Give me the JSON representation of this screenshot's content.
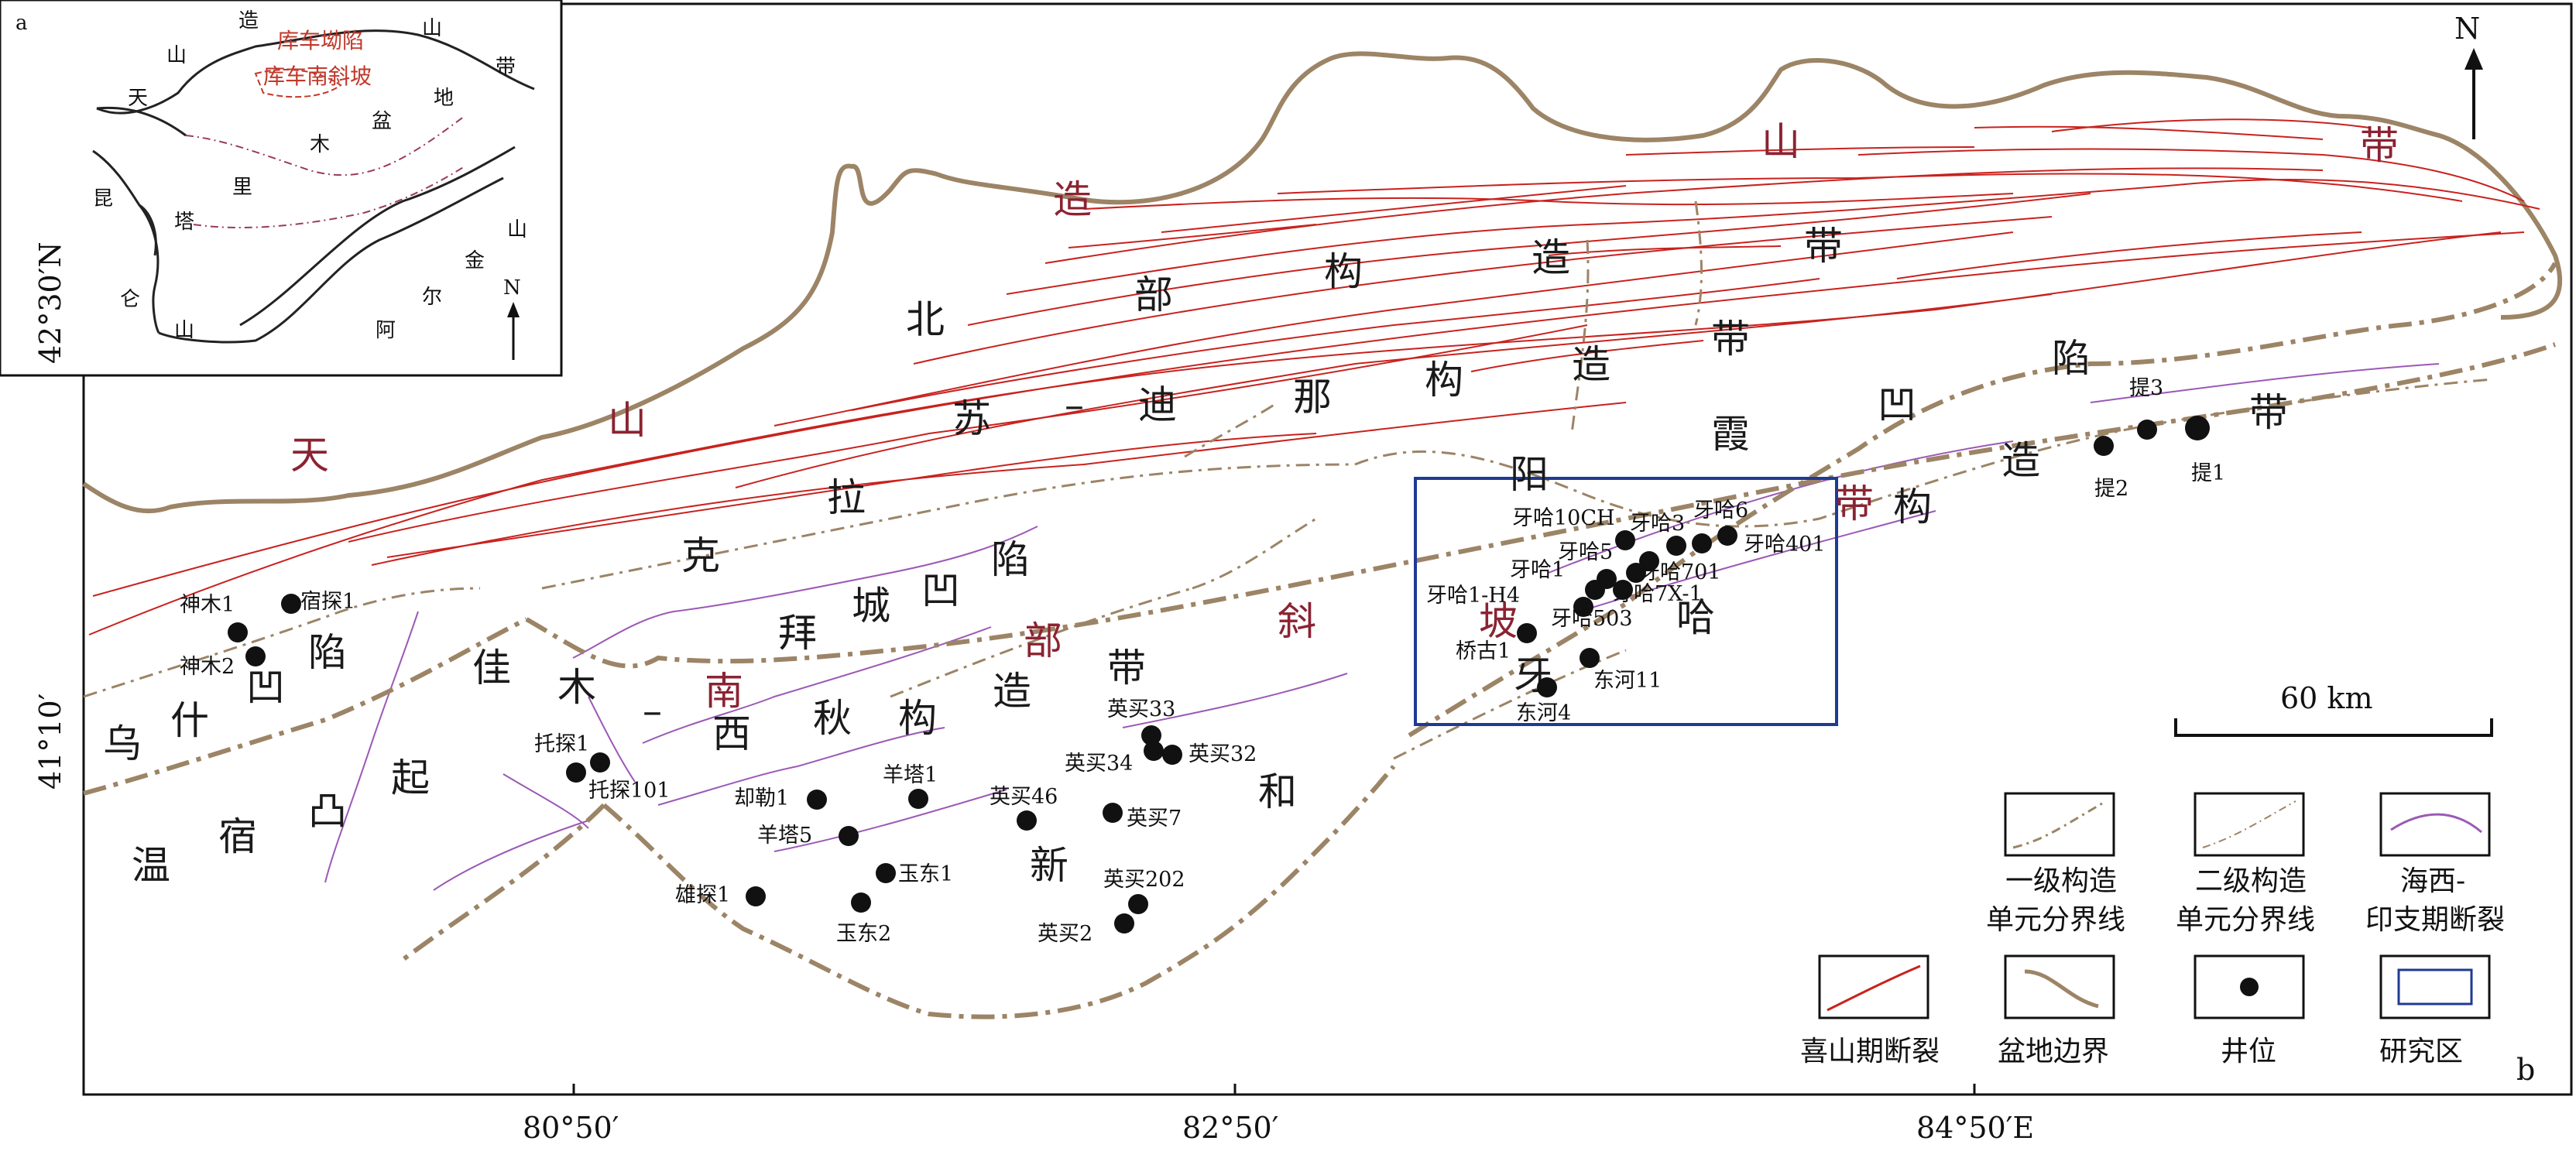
{
  "panel_labels": {
    "inset": "a",
    "main": "b"
  },
  "north_label": "N",
  "inset": {
    "labels": [
      "造",
      "山",
      "带",
      "山",
      "天",
      "盆",
      "地",
      "木",
      "里",
      "塔",
      "昆",
      "仑",
      "山",
      "金",
      "尔",
      "阿",
      "山"
    ],
    "red_labels": [
      "库车坳陷",
      "库车南斜坡"
    ],
    "north_label": "N"
  },
  "axes": {
    "lat_ticks": [
      "42°30′N",
      "41°10′"
    ],
    "lon_ticks": [
      "80°50′",
      "82°50′",
      "84°50′E"
    ]
  },
  "scale_bar": {
    "label": "60 km"
  },
  "region_labels": {
    "black": [
      "北",
      "部",
      "构",
      "造",
      "带",
      "苏",
      "–",
      "迪",
      "那",
      "构",
      "造",
      "带",
      "拉",
      "克",
      "阳",
      "霞",
      "凹",
      "陷",
      "拜",
      "城",
      "凹",
      "陷",
      "佳",
      "木",
      "–",
      "西",
      "秋",
      "构",
      "造",
      "带",
      "乌",
      "什",
      "凹",
      "陷",
      "温",
      "宿",
      "凸",
      "起",
      "新",
      "和",
      "哈",
      "牙",
      "造",
      "带",
      "构"
    ],
    "red": [
      "天",
      "山",
      "造",
      "山",
      "带",
      "南",
      "部",
      "斜",
      "坡",
      "带"
    ]
  },
  "wells": [
    {
      "name": "神木1"
    },
    {
      "name": "宿探1"
    },
    {
      "name": "神木2"
    },
    {
      "name": "托探1"
    },
    {
      "name": "托探101"
    },
    {
      "name": "却勒1"
    },
    {
      "name": "羊塔1"
    },
    {
      "name": "羊塔5"
    },
    {
      "name": "玉东1"
    },
    {
      "name": "雄探1"
    },
    {
      "name": "玉东2"
    },
    {
      "name": "英买46"
    },
    {
      "name": "英买7"
    },
    {
      "name": "英买34"
    },
    {
      "name": "英买33"
    },
    {
      "name": "英买32"
    },
    {
      "name": "英买202"
    },
    {
      "name": "英买2"
    },
    {
      "name": "牙哈10CH"
    },
    {
      "name": "牙哈5"
    },
    {
      "name": "牙哈3"
    },
    {
      "name": "牙哈6"
    },
    {
      "name": "牙哈401"
    },
    {
      "name": "牙哈1"
    },
    {
      "name": "牙哈701"
    },
    {
      "name": "牙哈1-H4"
    },
    {
      "name": "牙哈7X-1"
    },
    {
      "name": "牙哈503"
    },
    {
      "name": "桥古1"
    },
    {
      "name": "东河11"
    },
    {
      "name": "东河4"
    },
    {
      "name": "提3"
    },
    {
      "name": "提2"
    },
    {
      "name": "提1"
    }
  ],
  "legend": [
    {
      "key": "primary-boundary",
      "label": [
        "一级构造",
        "单元分界线"
      ]
    },
    {
      "key": "secondary-boundary",
      "label": [
        "二级构造",
        "单元分界线"
      ]
    },
    {
      "key": "hercynian-fault",
      "label": [
        "海西-",
        "印支期断裂"
      ]
    },
    {
      "key": "himalayan-fault",
      "label": [
        "喜山期断裂"
      ]
    },
    {
      "key": "basin-boundary",
      "label": [
        "盆地边界"
      ]
    },
    {
      "key": "well",
      "label": [
        "井位"
      ]
    },
    {
      "key": "study-area",
      "label": [
        "研究区"
      ]
    }
  ],
  "colors": {
    "basin_boundary": "#9c8466",
    "himalayan_fault": "#c8221e",
    "hercynian_fault": "#9b59b6",
    "study_area": "#1f3a93",
    "region_red": "#8b2332"
  }
}
